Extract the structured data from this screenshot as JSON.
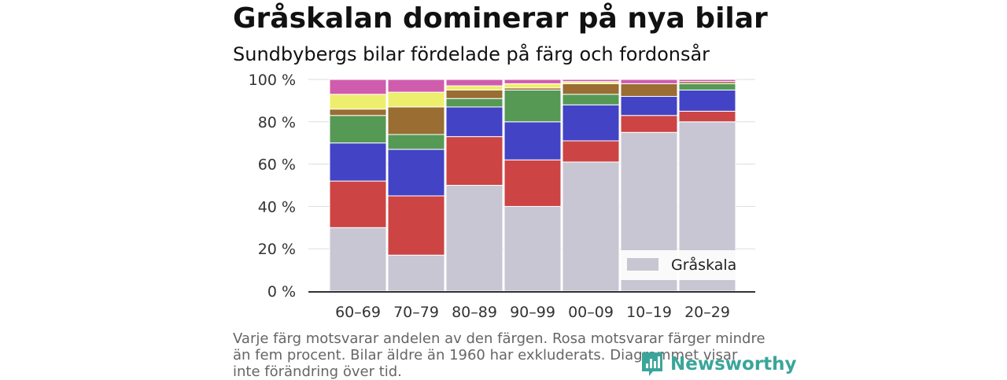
{
  "title": "Gråskalan dominerar på nya bilar",
  "subtitle": "Sundbybergs bilar fördelade på färg och fordonsår",
  "caption": "Varje färg motsvarar andelen av den färgen. Rosa motsvarar färger mindre än fem procent. Bilar äldre än 1960 har exkluderats. Diagrammet visar inte förändring över tid.",
  "logo": {
    "text": "Newsworthy",
    "icon": "newsworthy-chart-icon",
    "color": "#3aa59a"
  },
  "chart_data": {
    "type": "bar",
    "stacked": true,
    "categories": [
      "60–69",
      "70–79",
      "80–89",
      "90–99",
      "00–09",
      "10–19",
      "20–29"
    ],
    "ylim": [
      0,
      100
    ],
    "yticks": [
      0,
      20,
      40,
      60,
      80,
      100
    ],
    "ytick_labels": [
      "0 %",
      "20 %",
      "40 %",
      "60 %",
      "80 %",
      "100 %"
    ],
    "grid": "horizontal",
    "legend": {
      "placement": "bottom-right",
      "entries": [
        "Gråskala"
      ]
    },
    "series": [
      {
        "name": "Gråskala",
        "color": "#c8c6d2",
        "values": [
          30,
          17,
          50,
          40,
          61,
          75,
          80
        ]
      },
      {
        "color": "#cc4444",
        "values": [
          22,
          28,
          23,
          22,
          10,
          8,
          5
        ]
      },
      {
        "color": "#4343c5",
        "values": [
          18,
          22,
          14,
          18,
          17,
          9,
          10
        ]
      },
      {
        "color": "#559955",
        "values": [
          13,
          7,
          4,
          15,
          5,
          0,
          3
        ]
      },
      {
        "color": "#9a6d33",
        "values": [
          3,
          13,
          4,
          1,
          5,
          6,
          1
        ]
      },
      {
        "color": "#eeee6e",
        "values": [
          7,
          7,
          2,
          2,
          1,
          0,
          0
        ]
      },
      {
        "color": "#d05cad",
        "values": [
          7,
          6,
          3,
          2,
          1,
          2,
          1
        ]
      }
    ]
  }
}
